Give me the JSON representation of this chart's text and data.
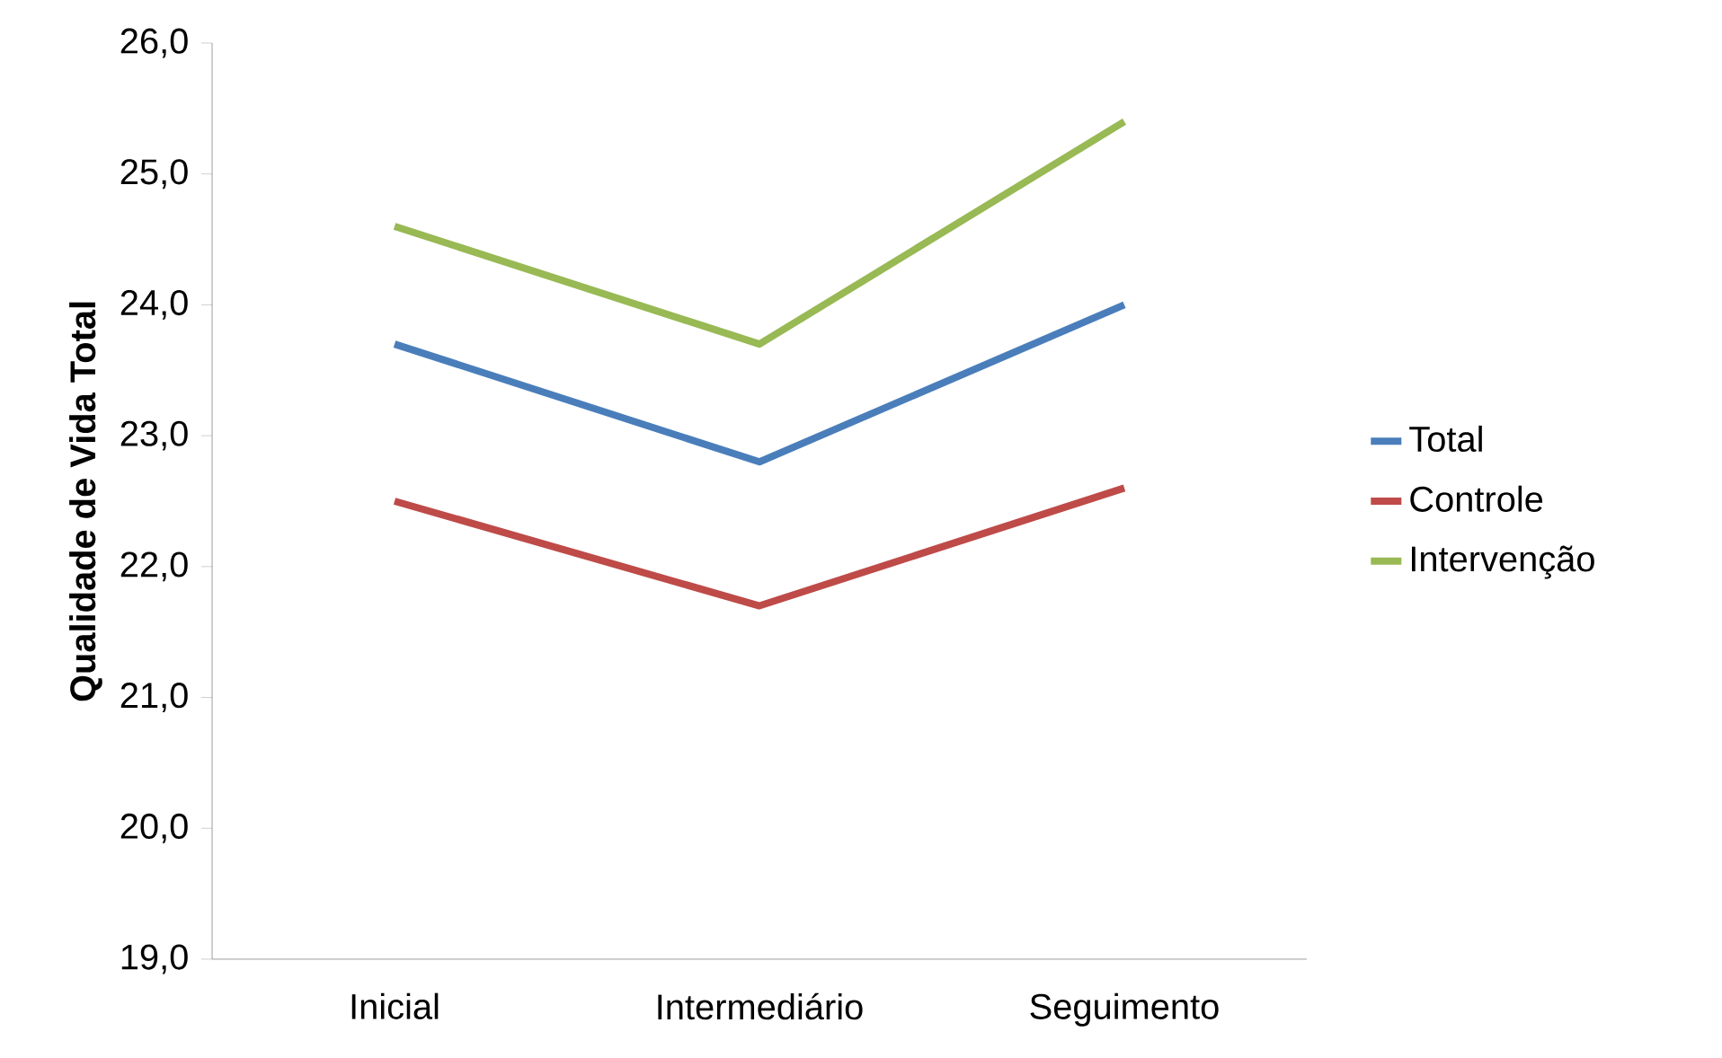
{
  "chart_data": {
    "type": "line",
    "ylabel": "**Qualidade de Vida Total**",
    "categories": [
      "Inicial",
      "Intermediário",
      "Seguimento"
    ],
    "series": [
      {
        "name": "Total",
        "color": "#4a7ebb",
        "values": [
          23.7,
          22.8,
          24.0
        ]
      },
      {
        "name": "Controle",
        "color": "#be4b48",
        "values": [
          22.5,
          21.7,
          22.6
        ]
      },
      {
        "name": "Intervenção",
        "color": "#98b954",
        "values": [
          24.6,
          23.7,
          25.4
        ]
      }
    ],
    "ylim": [
      19,
      26
    ],
    "yticks": [
      {
        "value": 19,
        "label": "19,0"
      },
      {
        "value": 20,
        "label": "20,0"
      },
      {
        "value": 21,
        "label": "21,0"
      },
      {
        "value": 22,
        "label": "22,0"
      },
      {
        "value": 23,
        "label": "23,0"
      },
      {
        "value": 24,
        "label": "24,0"
      },
      {
        "value": 25,
        "label": "25,0"
      },
      {
        "value": 26,
        "label": "26,0"
      }
    ],
    "grid": false,
    "legend": "right"
  }
}
